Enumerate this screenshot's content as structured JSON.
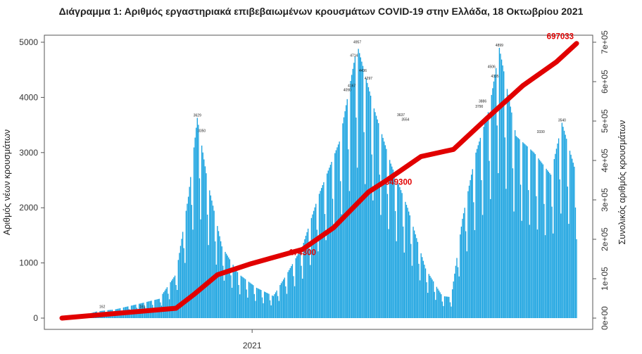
{
  "chart_data": {
    "type": "bar",
    "title": "Διάγραμμα 1: Αριθμός εργαστηριακά επιβεβαιωμένων κρουσμάτων COVID-19 στην Ελλάδα, 18 Οκτωβρίου 2021",
    "ylabel": "Αριθμός νέων κρουσμάτων",
    "y2label": "Συνολικός αριθμός κρουσμάτων",
    "xlabel": "",
    "x_ticks": [
      "2021"
    ],
    "ylim": [
      0,
      5000
    ],
    "y_ticks": [
      0,
      1000,
      2000,
      3000,
      4000,
      5000
    ],
    "y2lim": [
      0,
      700000
    ],
    "y2_ticks": [
      "0e+00",
      "1e+05",
      "2e+05",
      "3e+05",
      "4e+05",
      "5e+05",
      "6e+05",
      "7e+05"
    ],
    "grid": false,
    "colors": {
      "bars": "#1aa3e0",
      "cumulative": "#e10000",
      "annotation": "#e10000"
    },
    "series": [
      {
        "kind": "bar",
        "axis": "left",
        "keypoints": [
          {
            "x": "2020-08-01",
            "y": 40
          },
          {
            "x": "2020-08-15",
            "y": 120
          },
          {
            "x": "2020-09-01",
            "y": 160
          },
          {
            "x": "2020-09-20",
            "y": 250
          },
          {
            "x": "2020-10-10",
            "y": 350
          },
          {
            "x": "2020-10-25",
            "y": 800
          },
          {
            "x": "2020-11-05",
            "y": 2200
          },
          {
            "x": "2020-11-13",
            "y": 3629
          },
          {
            "x": "2020-11-22",
            "y": 2500
          },
          {
            "x": "2020-12-05",
            "y": 1300
          },
          {
            "x": "2020-12-20",
            "y": 800
          },
          {
            "x": "2021-01-05",
            "y": 550
          },
          {
            "x": "2021-01-20",
            "y": 400
          },
          {
            "x": "2021-02-01",
            "y": 800
          },
          {
            "x": "2021-02-15",
            "y": 1300
          },
          {
            "x": "2021-03-01",
            "y": 2200
          },
          {
            "x": "2021-03-20",
            "y": 3200
          },
          {
            "x": "2021-04-05",
            "y": 4957
          },
          {
            "x": "2021-04-20",
            "y": 3800
          },
          {
            "x": "2021-05-05",
            "y": 2800
          },
          {
            "x": "2021-05-20",
            "y": 2000
          },
          {
            "x": "2021-06-05",
            "y": 900
          },
          {
            "x": "2021-06-20",
            "y": 400
          },
          {
            "x": "2021-06-28",
            "y": 380
          },
          {
            "x": "2021-07-08",
            "y": 1800
          },
          {
            "x": "2021-07-20",
            "y": 3000
          },
          {
            "x": "2021-08-01",
            "y": 3800
          },
          {
            "x": "2021-08-10",
            "y": 4899
          },
          {
            "x": "2021-08-25",
            "y": 3300
          },
          {
            "x": "2021-09-10",
            "y": 3000
          },
          {
            "x": "2021-09-25",
            "y": 2600
          },
          {
            "x": "2021-10-05",
            "y": 3540
          },
          {
            "x": "2021-10-18",
            "y": 2600
          }
        ]
      },
      {
        "kind": "line",
        "axis": "right",
        "points": [
          {
            "x": "2020-07-15",
            "y": 0
          },
          {
            "x": "2020-10-25",
            "y": 25000
          },
          {
            "x": "2020-11-10",
            "y": 60000
          },
          {
            "x": "2020-12-01",
            "y": 110000
          },
          {
            "x": "2020-12-31",
            "y": 138000
          },
          {
            "x": "2021-02-15",
            "y": 174300
          },
          {
            "x": "2021-03-15",
            "y": 230000
          },
          {
            "x": "2021-04-15",
            "y": 320000
          },
          {
            "x": "2021-05-01",
            "y": 349300
          },
          {
            "x": "2021-06-01",
            "y": 410000
          },
          {
            "x": "2021-06-30",
            "y": 428000
          },
          {
            "x": "2021-07-31",
            "y": 510000
          },
          {
            "x": "2021-08-31",
            "y": 590000
          },
          {
            "x": "2021-09-30",
            "y": 650000
          },
          {
            "x": "2021-10-18",
            "y": 697033
          }
        ]
      }
    ],
    "bar_labels": [
      {
        "x": "2020-08-20",
        "text": "162"
      },
      {
        "x": "2020-09-25",
        "text": "161"
      },
      {
        "x": "2020-11-13",
        "text": "3629"
      },
      {
        "x": "2020-11-17",
        "text": "3350"
      },
      {
        "x": "2021-04-02",
        "text": "4714"
      },
      {
        "x": "2021-04-05",
        "text": "4957"
      },
      {
        "x": "2021-04-10",
        "text": "4436"
      },
      {
        "x": "2021-04-15",
        "text": "4297"
      },
      {
        "x": "2021-03-27",
        "text": "4090"
      },
      {
        "x": "2021-03-31",
        "text": "4167"
      },
      {
        "x": "2021-05-14",
        "text": "3637"
      },
      {
        "x": "2021-05-18",
        "text": "3554"
      },
      {
        "x": "2021-07-23",
        "text": "3790"
      },
      {
        "x": "2021-07-26",
        "text": "3886"
      },
      {
        "x": "2021-08-03",
        "text": "4506"
      },
      {
        "x": "2021-08-06",
        "text": "4335"
      },
      {
        "x": "2021-08-10",
        "text": "4899"
      },
      {
        "x": "2021-09-16",
        "text": "3330"
      },
      {
        "x": "2021-10-05",
        "text": "3540"
      }
    ],
    "annotations": [
      {
        "text": "697033",
        "x": "2021-10-18"
      },
      {
        "text": "349300",
        "x": "2021-05-01"
      },
      {
        "text": "174300",
        "x": "2021-02-15"
      }
    ]
  }
}
